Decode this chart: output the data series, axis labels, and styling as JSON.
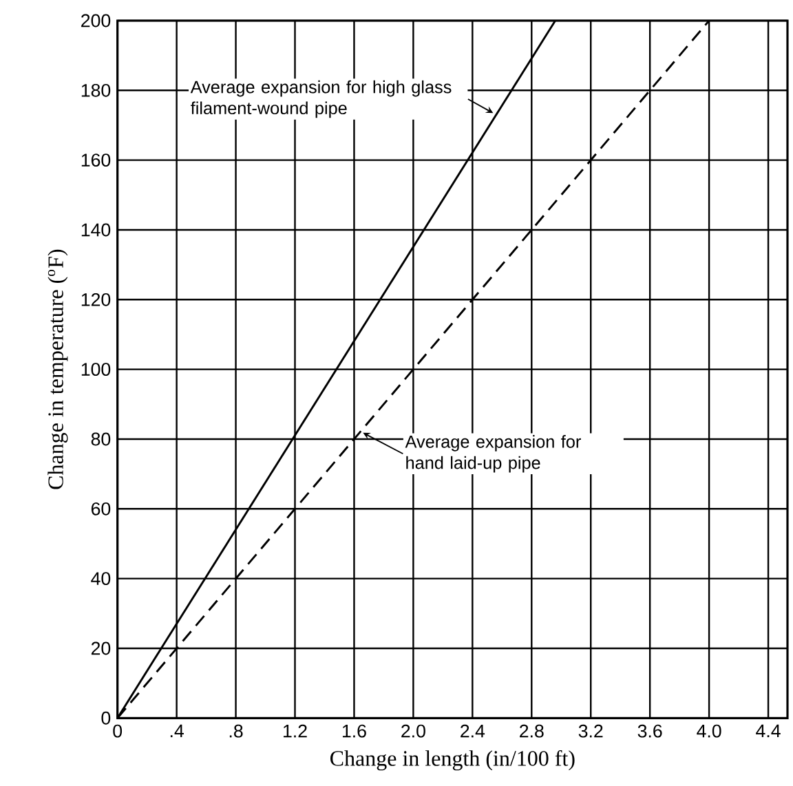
{
  "chart_data": {
    "type": "line",
    "xlabel": "Change in length (in/100 ft)",
    "ylabel": "Change in temperature ($^{o}$F)",
    "xlim": [
      0,
      4.53
    ],
    "ylim": [
      0,
      200
    ],
    "xticks": [
      0,
      {
        "value": 0.4,
        "label": ".4"
      },
      {
        "value": 0.8,
        "label": ".8"
      },
      1.2,
      1.6,
      {
        "value": 2,
        "label": "2.0"
      },
      2.4,
      2.8,
      3.2,
      3.6,
      {
        "value": 4,
        "label": "4.0"
      },
      4.4
    ],
    "yticks": [
      0,
      20,
      40,
      60,
      80,
      100,
      120,
      140,
      160,
      180,
      200
    ],
    "grid": true,
    "series": [
      {
        "color": "#000000",
        "line_style": "solid",
        "x": [
          0,
          2.96
        ],
        "values": [
          0,
          200
        ]
      },
      {
        "color": "#000000",
        "line_style": "dashed",
        "x": [
          0,
          4.0
        ],
        "values": [
          0,
          200
        ]
      }
    ],
    "annotations": [
      {
        "text": "Average expansion for high glass filament-wound pipe",
        "x": 2.57,
        "y": 173.5
      },
      {
        "text": "Average expansion for hand laid-up pipe",
        "x": 1.63,
        "y": 81.8
      }
    ]
  }
}
